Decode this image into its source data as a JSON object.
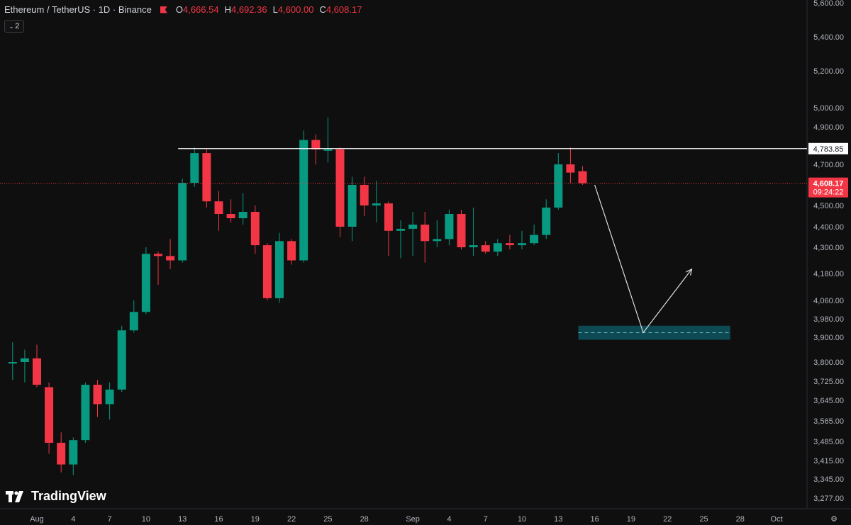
{
  "header": {
    "symbol": "Ethereum / TetherUS · 1D · Binance",
    "o_label": "O",
    "o_value": "4,666.54",
    "h_label": "H",
    "h_value": "4,692.36",
    "l_label": "L",
    "l_value": "4,600.00",
    "c_label": "C",
    "c_value": "4,608.17"
  },
  "indicator_toggle": {
    "label": "2",
    "icon": "chevron-down-icon"
  },
  "logo": {
    "text": "TradingView"
  },
  "colors": {
    "up": "#089981",
    "down": "#f23645",
    "background": "#0f0f0f",
    "zone": "#0e4a54"
  },
  "chart_data": {
    "type": "candlestick",
    "title": "Ethereum / TetherUS · 1D · Binance",
    "y_ticks": [
      {
        "label": "5,600.00",
        "value": 5600
      },
      {
        "label": "5,400.00",
        "value": 5400
      },
      {
        "label": "5,200.00",
        "value": 5200
      },
      {
        "label": "5,000.00",
        "value": 5000
      },
      {
        "label": "4,900.00",
        "value": 4900
      },
      {
        "label": "4,700.00",
        "value": 4700
      },
      {
        "label": "4,500.00",
        "value": 4500
      },
      {
        "label": "4,400.00",
        "value": 4400
      },
      {
        "label": "4,300.00",
        "value": 4300
      },
      {
        "label": "4,180.00",
        "value": 4180
      },
      {
        "label": "4,060.00",
        "value": 4060
      },
      {
        "label": "3,980.00",
        "value": 3980
      },
      {
        "label": "3,900.00",
        "value": 3900
      },
      {
        "label": "3,800.00",
        "value": 3800
      },
      {
        "label": "3,725.00",
        "value": 3725
      },
      {
        "label": "3,645.00",
        "value": 3645
      },
      {
        "label": "3,565.00",
        "value": 3565
      },
      {
        "label": "3,485.00",
        "value": 3485
      },
      {
        "label": "3,415.00",
        "value": 3415
      },
      {
        "label": "3,345.00",
        "value": 3345
      },
      {
        "label": "3,277.00",
        "value": 3277
      }
    ],
    "x_ticks": [
      {
        "label": "Aug",
        "day": 0
      },
      {
        "label": "4",
        "day": 3
      },
      {
        "label": "7",
        "day": 6
      },
      {
        "label": "10",
        "day": 9
      },
      {
        "label": "13",
        "day": 12
      },
      {
        "label": "16",
        "day": 15
      },
      {
        "label": "19",
        "day": 18
      },
      {
        "label": "22",
        "day": 21
      },
      {
        "label": "25",
        "day": 24
      },
      {
        "label": "28",
        "day": 27
      },
      {
        "label": "Sep",
        "day": 31
      },
      {
        "label": "4",
        "day": 34
      },
      {
        "label": "7",
        "day": 37
      },
      {
        "label": "10",
        "day": 40
      },
      {
        "label": "13",
        "day": 43
      },
      {
        "label": "16",
        "day": 46
      },
      {
        "label": "19",
        "day": 49
      },
      {
        "label": "22",
        "day": 52
      },
      {
        "label": "25",
        "day": 55
      },
      {
        "label": "28",
        "day": 58
      },
      {
        "label": "Oct",
        "day": 61
      }
    ],
    "candles": [
      {
        "day": -2,
        "o": 3798,
        "h": 3880,
        "l": 3730,
        "c": 3800
      },
      {
        "day": -1,
        "o": 3800,
        "h": 3850,
        "l": 3720,
        "c": 3815
      },
      {
        "day": 0,
        "o": 3815,
        "h": 3870,
        "l": 3700,
        "c": 3710
      },
      {
        "day": 1,
        "o": 3700,
        "h": 3720,
        "l": 3440,
        "c": 3480
      },
      {
        "day": 2,
        "o": 3480,
        "h": 3520,
        "l": 3370,
        "c": 3400
      },
      {
        "day": 3,
        "o": 3400,
        "h": 3500,
        "l": 3360,
        "c": 3490
      },
      {
        "day": 4,
        "o": 3490,
        "h": 3720,
        "l": 3480,
        "c": 3710
      },
      {
        "day": 5,
        "o": 3710,
        "h": 3730,
        "l": 3580,
        "c": 3630
      },
      {
        "day": 6,
        "o": 3630,
        "h": 3720,
        "l": 3570,
        "c": 3690
      },
      {
        "day": 7,
        "o": 3690,
        "h": 3950,
        "l": 3680,
        "c": 3930
      },
      {
        "day": 8,
        "o": 3930,
        "h": 4060,
        "l": 3920,
        "c": 4010
      },
      {
        "day": 9,
        "o": 4010,
        "h": 4300,
        "l": 4000,
        "c": 4270
      },
      {
        "day": 10,
        "o": 4270,
        "h": 4280,
        "l": 4130,
        "c": 4260
      },
      {
        "day": 11,
        "o": 4260,
        "h": 4340,
        "l": 4200,
        "c": 4240
      },
      {
        "day": 12,
        "o": 4240,
        "h": 4630,
        "l": 4230,
        "c": 4610
      },
      {
        "day": 13,
        "o": 4610,
        "h": 4790,
        "l": 4590,
        "c": 4760
      },
      {
        "day": 14,
        "o": 4760,
        "h": 4780,
        "l": 4490,
        "c": 4520
      },
      {
        "day": 15,
        "o": 4520,
        "h": 4570,
        "l": 4380,
        "c": 4460
      },
      {
        "day": 16,
        "o": 4460,
        "h": 4530,
        "l": 4420,
        "c": 4440
      },
      {
        "day": 17,
        "o": 4440,
        "h": 4560,
        "l": 4410,
        "c": 4470
      },
      {
        "day": 18,
        "o": 4470,
        "h": 4500,
        "l": 4270,
        "c": 4310
      },
      {
        "day": 19,
        "o": 4310,
        "h": 4320,
        "l": 4060,
        "c": 4070
      },
      {
        "day": 20,
        "o": 4070,
        "h": 4370,
        "l": 4050,
        "c": 4330
      },
      {
        "day": 21,
        "o": 4330,
        "h": 4340,
        "l": 4220,
        "c": 4240
      },
      {
        "day": 22,
        "o": 4240,
        "h": 4880,
        "l": 4230,
        "c": 4830
      },
      {
        "day": 23,
        "o": 4830,
        "h": 4860,
        "l": 4700,
        "c": 4780
      },
      {
        "day": 24,
        "o": 4780,
        "h": 4950,
        "l": 4710,
        "c": 4780
      },
      {
        "day": 25,
        "o": 4780,
        "h": 4790,
        "l": 4350,
        "c": 4400
      },
      {
        "day": 26,
        "o": 4400,
        "h": 4640,
        "l": 4330,
        "c": 4600
      },
      {
        "day": 27,
        "o": 4600,
        "h": 4640,
        "l": 4450,
        "c": 4500
      },
      {
        "day": 28,
        "o": 4500,
        "h": 4620,
        "l": 4420,
        "c": 4510
      },
      {
        "day": 29,
        "o": 4510,
        "h": 4520,
        "l": 4260,
        "c": 4380
      },
      {
        "day": 30,
        "o": 4380,
        "h": 4430,
        "l": 4250,
        "c": 4390
      },
      {
        "day": 31,
        "o": 4390,
        "h": 4470,
        "l": 4260,
        "c": 4410
      },
      {
        "day": 32,
        "o": 4410,
        "h": 4470,
        "l": 4230,
        "c": 4330
      },
      {
        "day": 33,
        "o": 4330,
        "h": 4430,
        "l": 4300,
        "c": 4340
      },
      {
        "day": 34,
        "o": 4340,
        "h": 4480,
        "l": 4310,
        "c": 4460
      },
      {
        "day": 35,
        "o": 4460,
        "h": 4480,
        "l": 4290,
        "c": 4300
      },
      {
        "day": 36,
        "o": 4300,
        "h": 4490,
        "l": 4260,
        "c": 4310
      },
      {
        "day": 37,
        "o": 4310,
        "h": 4330,
        "l": 4270,
        "c": 4280
      },
      {
        "day": 38,
        "o": 4280,
        "h": 4340,
        "l": 4260,
        "c": 4320
      },
      {
        "day": 39,
        "o": 4320,
        "h": 4360,
        "l": 4290,
        "c": 4310
      },
      {
        "day": 40,
        "o": 4310,
        "h": 4380,
        "l": 4290,
        "c": 4320
      },
      {
        "day": 41,
        "o": 4320,
        "h": 4410,
        "l": 4310,
        "c": 4360
      },
      {
        "day": 42,
        "o": 4360,
        "h": 4530,
        "l": 4340,
        "c": 4490
      },
      {
        "day": 43,
        "o": 4490,
        "h": 4760,
        "l": 4480,
        "c": 4700
      },
      {
        "day": 44,
        "o": 4700,
        "h": 4790,
        "l": 4610,
        "c": 4660
      },
      {
        "day": 45,
        "o": 4666.54,
        "h": 4692.36,
        "l": 4600,
        "c": 4608.17
      }
    ],
    "resistance": {
      "value": 4783.85,
      "label": "4,783.85",
      "from_day": 12
    },
    "current_price": {
      "label": "4,608.17",
      "countdown": "09:24:22",
      "value": 4608.17
    },
    "projection": [
      {
        "day": 46,
        "value": 4600
      },
      {
        "day": 50,
        "value": 3920
      },
      {
        "day": 54,
        "value": 4200
      }
    ],
    "zone": {
      "from_day": 45,
      "to_day": 57,
      "low": 3890,
      "high": 3950,
      "mid": 3920
    }
  }
}
